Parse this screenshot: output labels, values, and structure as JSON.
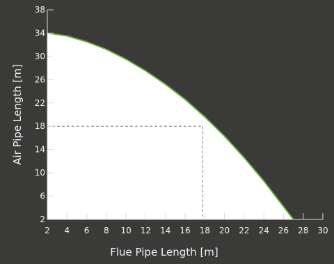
{
  "chart_data": {
    "type": "area",
    "xlabel": "Flue Pipe Length [m]",
    "ylabel": "Air Pipe Length [m]",
    "xlim": [
      2,
      30
    ],
    "ylim": [
      2,
      38
    ],
    "x_ticks": [
      2,
      4,
      6,
      8,
      10,
      12,
      14,
      16,
      18,
      20,
      22,
      24,
      26,
      28,
      30
    ],
    "y_ticks": [
      2,
      6,
      10,
      14,
      18,
      22,
      26,
      30,
      34,
      38
    ],
    "grid": false,
    "series": [
      {
        "x": [
          2,
          4,
          6,
          8,
          10,
          12,
          14,
          16,
          18,
          20,
          22,
          24,
          26,
          27
        ],
        "y": [
          34,
          33.5,
          32.5,
          31.2,
          29.5,
          27.5,
          25.2,
          22.6,
          19.6,
          16.3,
          12.6,
          8.6,
          4.2,
          2
        ],
        "stroke_color": "#6ab03a",
        "fill_color": "#ffffff"
      }
    ],
    "reference_point": {
      "x": 17.8,
      "y": 18
    },
    "colors": {
      "background": "#3a3a38",
      "axis": "#d9d9d9",
      "text": "#f2f2f2",
      "dashed_line": "#7a7a7a"
    }
  }
}
